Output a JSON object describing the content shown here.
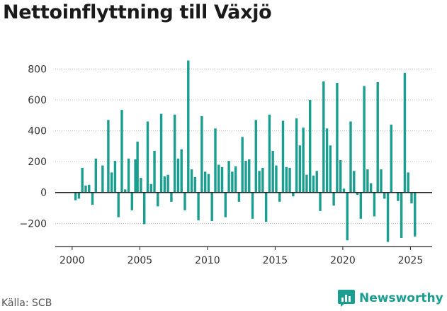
{
  "title": "Nettoinflyttning till Växjö",
  "source": "Källa: SCB",
  "brand": {
    "name": "Newsworthy",
    "icon": "newsworthy-logo-icon",
    "color": "#1a9e8f"
  },
  "colors": {
    "bar": "#1a9e8f",
    "axis": "#222222",
    "grid": "#bbbbbb",
    "text": "#333333"
  },
  "chart_data": {
    "type": "bar",
    "title": "Nettoinflyttning till Växjö",
    "xlabel": "",
    "ylabel": "",
    "ylim": [
      -350,
      880
    ],
    "xlim": [
      1998.75,
      2026.6
    ],
    "grid": true,
    "yticks": [
      -200,
      0,
      200,
      400,
      600,
      800
    ],
    "ytick_labels": [
      "−200",
      "0",
      "200",
      "400",
      "600",
      "800"
    ],
    "xticks": [
      2000,
      2005,
      2010,
      2015,
      2020,
      2025
    ],
    "xtick_labels": [
      "2000",
      "2005",
      "2010",
      "2015",
      "2020",
      "2025"
    ],
    "x_unit": "year",
    "series": [
      {
        "values": [
          [
            2000.25,
            -50
          ],
          [
            2000.5,
            -40
          ],
          [
            2000.75,
            160
          ],
          [
            2001.0,
            45
          ],
          [
            2001.25,
            50
          ],
          [
            2001.5,
            -80
          ],
          [
            2001.75,
            220
          ],
          [
            2002.25,
            175
          ],
          [
            2002.67,
            470
          ],
          [
            2002.92,
            130
          ],
          [
            2003.17,
            205
          ],
          [
            2003.42,
            -160
          ],
          [
            2003.67,
            535
          ],
          [
            2003.92,
            20
          ],
          [
            2004.17,
            220
          ],
          [
            2004.42,
            -115
          ],
          [
            2004.67,
            215
          ],
          [
            2004.83,
            330
          ],
          [
            2005.08,
            95
          ],
          [
            2005.33,
            -205
          ],
          [
            2005.58,
            460
          ],
          [
            2005.83,
            55
          ],
          [
            2006.08,
            270
          ],
          [
            2006.33,
            -90
          ],
          [
            2006.58,
            510
          ],
          [
            2006.83,
            105
          ],
          [
            2007.08,
            115
          ],
          [
            2007.33,
            -60
          ],
          [
            2007.58,
            505
          ],
          [
            2007.83,
            220
          ],
          [
            2008.08,
            280
          ],
          [
            2008.33,
            -115
          ],
          [
            2008.58,
            855
          ],
          [
            2008.83,
            150
          ],
          [
            2009.08,
            100
          ],
          [
            2009.33,
            -180
          ],
          [
            2009.58,
            495
          ],
          [
            2009.83,
            135
          ],
          [
            2010.08,
            120
          ],
          [
            2010.33,
            -185
          ],
          [
            2010.58,
            415
          ],
          [
            2010.83,
            180
          ],
          [
            2011.08,
            165
          ],
          [
            2011.33,
            -160
          ],
          [
            2011.58,
            205
          ],
          [
            2011.83,
            135
          ],
          [
            2012.08,
            170
          ],
          [
            2012.33,
            -60
          ],
          [
            2012.58,
            360
          ],
          [
            2012.83,
            205
          ],
          [
            2013.08,
            215
          ],
          [
            2013.33,
            -170
          ],
          [
            2013.58,
            470
          ],
          [
            2013.83,
            140
          ],
          [
            2014.08,
            160
          ],
          [
            2014.33,
            -190
          ],
          [
            2014.58,
            505
          ],
          [
            2014.83,
            270
          ],
          [
            2015.08,
            175
          ],
          [
            2015.33,
            -60
          ],
          [
            2015.58,
            465
          ],
          [
            2015.83,
            165
          ],
          [
            2016.08,
            160
          ],
          [
            2016.33,
            -25
          ],
          [
            2016.58,
            480
          ],
          [
            2016.83,
            305
          ],
          [
            2017.08,
            420
          ],
          [
            2017.33,
            115
          ],
          [
            2017.58,
            600
          ],
          [
            2017.83,
            110
          ],
          [
            2018.08,
            140
          ],
          [
            2018.33,
            -120
          ],
          [
            2018.58,
            720
          ],
          [
            2018.83,
            415
          ],
          [
            2019.08,
            305
          ],
          [
            2019.33,
            -85
          ],
          [
            2019.58,
            710
          ],
          [
            2019.83,
            210
          ],
          [
            2020.08,
            25
          ],
          [
            2020.33,
            -310
          ],
          [
            2020.58,
            460
          ],
          [
            2020.83,
            140
          ],
          [
            2021.08,
            -15
          ],
          [
            2021.33,
            -170
          ],
          [
            2021.58,
            690
          ],
          [
            2021.83,
            150
          ],
          [
            2022.08,
            60
          ],
          [
            2022.33,
            -155
          ],
          [
            2022.58,
            715
          ],
          [
            2022.83,
            150
          ],
          [
            2023.08,
            -40
          ],
          [
            2023.33,
            -320
          ],
          [
            2023.58,
            440
          ],
          [
            2024.08,
            -55
          ],
          [
            2024.33,
            -295
          ],
          [
            2024.58,
            775
          ],
          [
            2024.83,
            130
          ],
          [
            2025.08,
            -70
          ],
          [
            2025.33,
            -285
          ]
        ]
      }
    ]
  }
}
